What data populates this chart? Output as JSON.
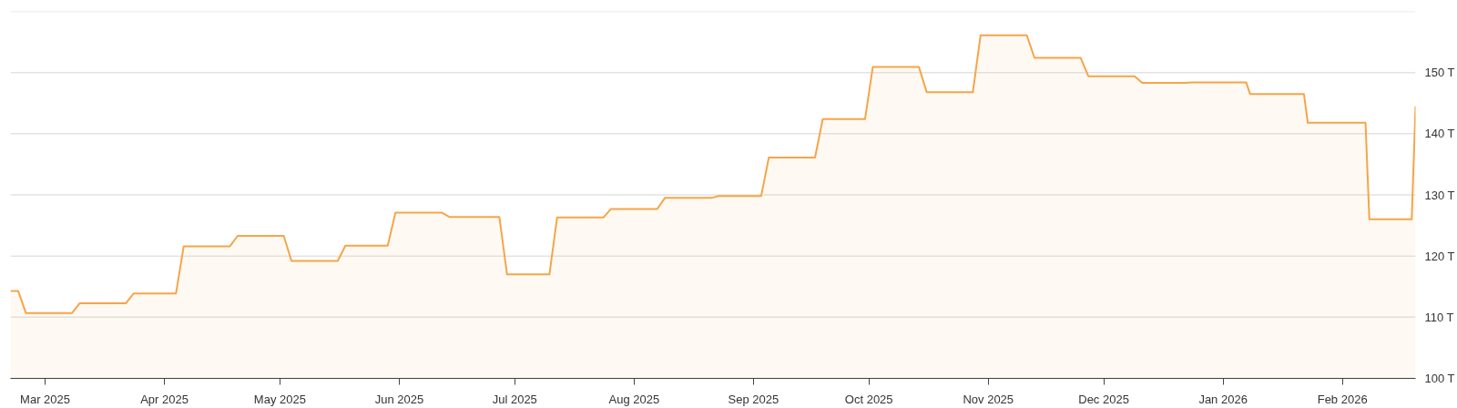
{
  "chart_data": {
    "type": "area",
    "x": [
      "2025-02-20",
      "2025-02-22",
      "2025-02-24",
      "2025-03-08",
      "2025-03-10",
      "2025-03-22",
      "2025-03-24",
      "2025-04-04",
      "2025-04-06",
      "2025-04-18",
      "2025-04-20",
      "2025-05-02",
      "2025-05-04",
      "2025-05-16",
      "2025-05-18",
      "2025-05-29",
      "2025-05-31",
      "2025-06-12",
      "2025-06-14",
      "2025-06-27",
      "2025-06-29",
      "2025-07-10",
      "2025-07-12",
      "2025-07-24",
      "2025-07-26",
      "2025-08-07",
      "2025-08-09",
      "2025-08-21",
      "2025-08-23",
      "2025-09-03",
      "2025-09-05",
      "2025-09-17",
      "2025-09-19",
      "2025-09-30",
      "2025-10-02",
      "2025-10-14",
      "2025-10-16",
      "2025-10-28",
      "2025-10-30",
      "2025-11-11",
      "2025-11-13",
      "2025-11-25",
      "2025-11-27",
      "2025-12-09",
      "2025-12-11",
      "2025-12-22",
      "2025-12-24",
      "2026-01-07",
      "2026-01-08",
      "2026-01-22",
      "2026-01-23",
      "2026-02-07",
      "2026-02-08",
      "2026-02-19",
      "2026-02-20"
    ],
    "series": [
      {
        "color": "#f5a54a",
        "values": [
          114.3,
          114.3,
          110.7,
          110.7,
          112.3,
          112.3,
          113.9,
          113.9,
          121.6,
          121.6,
          123.3,
          123.3,
          119.2,
          119.2,
          121.7,
          121.7,
          127.1,
          127.1,
          126.4,
          126.4,
          117.0,
          117.0,
          126.3,
          126.3,
          127.7,
          127.7,
          129.5,
          129.5,
          129.8,
          129.8,
          136.1,
          136.1,
          142.4,
          142.4,
          150.9,
          150.9,
          146.8,
          146.8,
          156.1,
          156.1,
          152.4,
          152.4,
          149.4,
          149.4,
          148.3,
          148.3,
          148.4,
          148.4,
          146.5,
          146.5,
          141.8,
          141.8,
          126.0,
          126.0,
          144.5
        ]
      }
    ],
    "xlim": [
      "2025-02-20",
      "2026-02-20"
    ],
    "xticks": [
      {
        "value": "2025-03-01",
        "label": "Mar 2025"
      },
      {
        "value": "2025-04-01",
        "label": "Apr 2025"
      },
      {
        "value": "2025-05-01",
        "label": "May 2025"
      },
      {
        "value": "2025-06-01",
        "label": "Jun 2025"
      },
      {
        "value": "2025-07-01",
        "label": "Jul 2025"
      },
      {
        "value": "2025-08-01",
        "label": "Aug 2025"
      },
      {
        "value": "2025-09-01",
        "label": "Sep 2025"
      },
      {
        "value": "2025-10-01",
        "label": "Oct 2025"
      },
      {
        "value": "2025-11-01",
        "label": "Nov 2025"
      },
      {
        "value": "2025-12-01",
        "label": "Dec 2025"
      },
      {
        "value": "2026-01-01",
        "label": "Jan 2026"
      },
      {
        "value": "2026-02-01",
        "label": "Feb 2026"
      }
    ],
    "ylim": [
      100,
      160
    ],
    "yticks": [
      {
        "value": 100,
        "label": "100 T"
      },
      {
        "value": 110,
        "label": "110 T"
      },
      {
        "value": 120,
        "label": "120 T"
      },
      {
        "value": 130,
        "label": "130 T"
      },
      {
        "value": 140,
        "label": "140 T"
      },
      {
        "value": 150,
        "label": "150 T"
      },
      {
        "value": 160,
        "label": null
      }
    ],
    "grid": "y"
  }
}
